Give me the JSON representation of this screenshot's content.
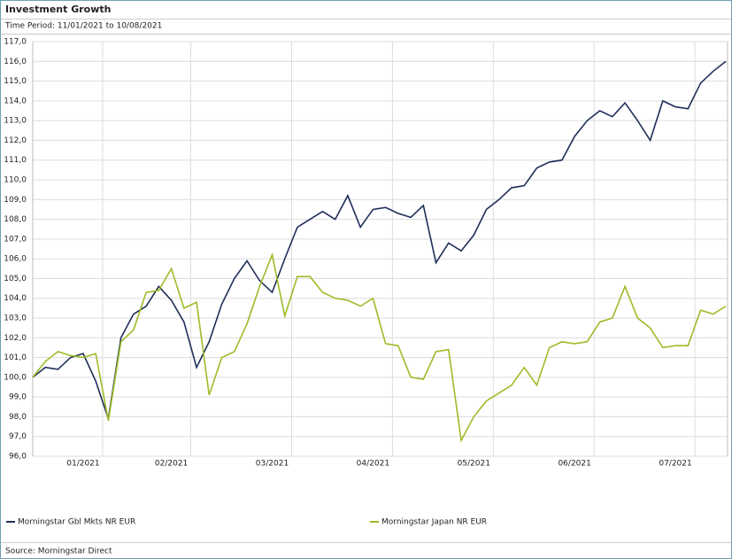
{
  "chart_data": {
    "type": "line",
    "title": "Investment Growth",
    "subtitle": "Time Period: 11/01/2021 to 10/08/2021",
    "source": "Source: Morningstar Direct",
    "categories": [
      null,
      null,
      null,
      null,
      "01/2021",
      null,
      null,
      null,
      null,
      null,
      null,
      "02/2021",
      null,
      null,
      null,
      null,
      null,
      null,
      null,
      "03/2021",
      null,
      null,
      null,
      null,
      null,
      null,
      null,
      "04/2021",
      null,
      null,
      null,
      null,
      null,
      null,
      null,
      "05/2021",
      null,
      null,
      null,
      null,
      null,
      null,
      null,
      "06/2021",
      null,
      null,
      null,
      null,
      null,
      null,
      null,
      "07/2021",
      null,
      null,
      null,
      null
    ],
    "series": [
      {
        "name": "Morningstar Gbl Mkts NR EUR",
        "color": "#1f2d5a",
        "values": [
          100.0,
          100.5,
          100.4,
          101.0,
          101.2,
          99.8,
          97.9,
          102.0,
          103.2,
          103.6,
          104.6,
          103.9,
          102.8,
          100.5,
          101.8,
          103.7,
          105.0,
          105.9,
          104.9,
          104.3,
          106.0,
          107.6,
          108.0,
          108.4,
          108.0,
          109.2,
          107.6,
          108.5,
          108.6,
          108.3,
          108.1,
          108.7,
          105.8,
          106.8,
          106.4,
          107.2,
          108.5,
          109.0,
          109.6,
          109.7,
          110.6,
          110.9,
          111.0,
          112.2,
          113.0,
          113.5,
          113.2,
          113.9,
          113.0,
          112.0,
          114.0,
          113.7,
          113.6,
          114.9,
          115.5,
          116.0
        ]
      },
      {
        "name": "Morningstar Japan NR EUR",
        "color": "#9dbb28",
        "values": [
          100.0,
          100.8,
          101.3,
          101.1,
          101.0,
          101.2,
          97.8,
          101.8,
          102.4,
          104.3,
          104.4,
          105.5,
          103.5,
          103.8,
          99.1,
          101.0,
          101.3,
          102.7,
          104.6,
          106.2,
          103.1,
          105.1,
          105.1,
          104.3,
          104.0,
          103.9,
          103.6,
          104.0,
          101.7,
          101.6,
          100.0,
          99.9,
          101.3,
          101.4,
          96.8,
          98.0,
          98.8,
          99.2,
          99.6,
          100.5,
          99.6,
          101.5,
          101.8,
          101.7,
          101.8,
          102.8,
          103.0,
          104.6,
          103.0,
          102.5,
          101.5,
          101.6,
          101.6,
          103.4,
          103.2,
          103.6
        ]
      }
    ],
    "ylim": [
      96,
      117
    ],
    "yticks": [
      {
        "value": 96,
        "label": "96,0"
      },
      {
        "value": 97,
        "label": "97,0"
      },
      {
        "value": 98,
        "label": "98,0"
      },
      {
        "value": 99,
        "label": "99,0"
      },
      {
        "value": 100,
        "label": "100,0"
      },
      {
        "value": 101,
        "label": "101,0"
      },
      {
        "value": 102,
        "label": "102,0"
      },
      {
        "value": 103,
        "label": "103,0"
      },
      {
        "value": 104,
        "label": "104,0"
      },
      {
        "value": 105,
        "label": "105,0"
      },
      {
        "value": 106,
        "label": "106,0"
      },
      {
        "value": 107,
        "label": "107,0"
      },
      {
        "value": 108,
        "label": "108,0"
      },
      {
        "value": 109,
        "label": "109,0"
      },
      {
        "value": 110,
        "label": "110,0"
      },
      {
        "value": 111,
        "label": "111,0"
      },
      {
        "value": 112,
        "label": "112,0"
      },
      {
        "value": 113,
        "label": "113,0"
      },
      {
        "value": 114,
        "label": "114,0"
      },
      {
        "value": 115,
        "label": "115,0"
      },
      {
        "value": 116,
        "label": "116,0"
      },
      {
        "value": 117,
        "label": "117,0"
      }
    ],
    "grid": true
  }
}
